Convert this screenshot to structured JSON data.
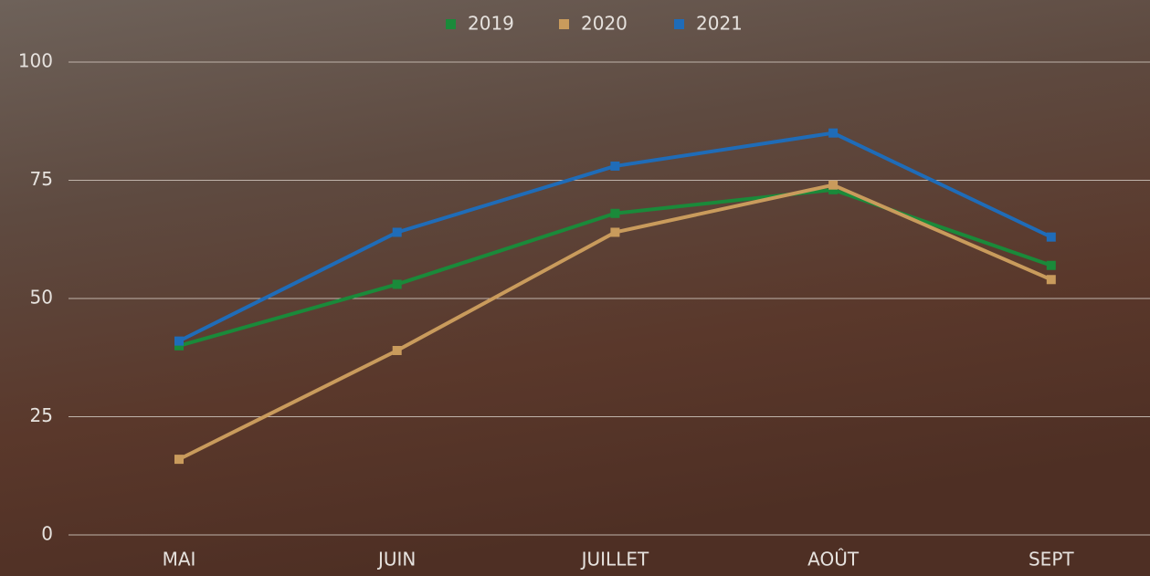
{
  "chart_data": {
    "type": "line",
    "categories": [
      "MAI",
      "JUIN",
      "JUILLET",
      "AOÛT",
      "SEPT"
    ],
    "series": [
      {
        "name": "2019",
        "color": "#1a8a3a",
        "values": [
          40,
          53,
          68,
          73,
          57
        ]
      },
      {
        "name": "2020",
        "color": "#c99b5c",
        "values": [
          16,
          39,
          64,
          74,
          54
        ]
      },
      {
        "name": "2021",
        "color": "#1f6cb8",
        "values": [
          41,
          64,
          78,
          85,
          63
        ]
      }
    ],
    "ylim": [
      0,
      100
    ],
    "yticks": [
      0,
      25,
      50,
      75,
      100
    ],
    "grid": true,
    "legend": "top"
  }
}
